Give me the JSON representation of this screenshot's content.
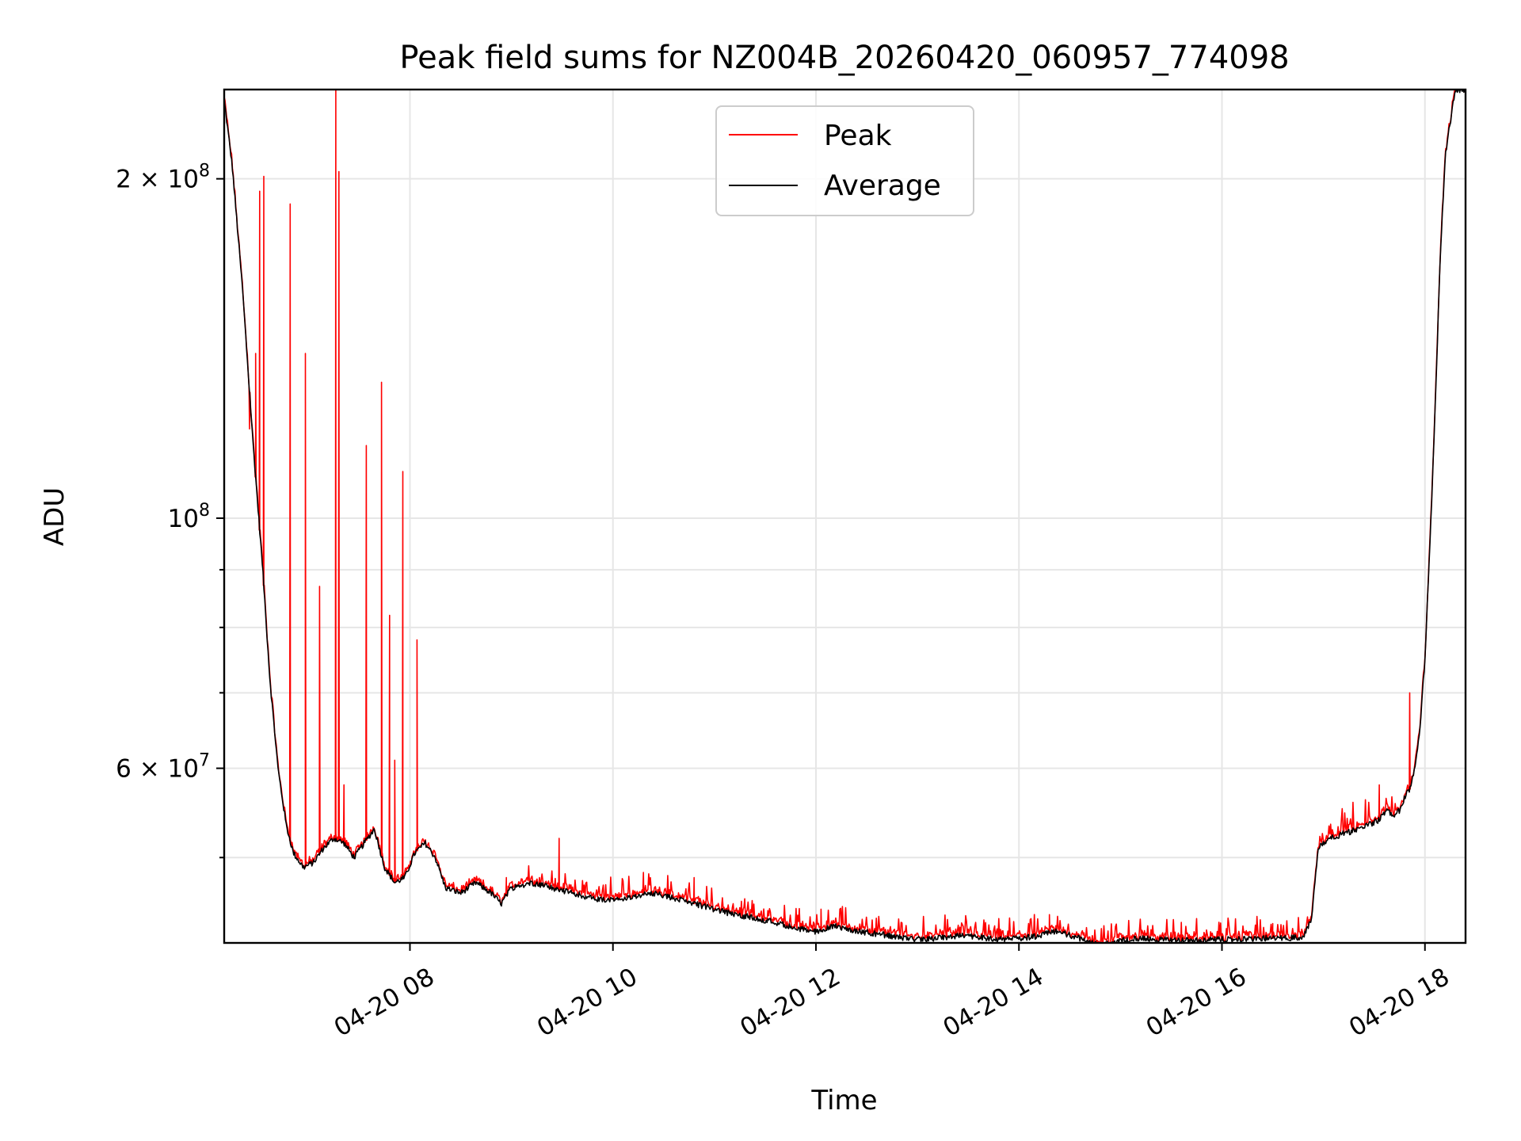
{
  "chart_data": {
    "type": "line",
    "title": "Peak field sums for NZ004B_20260420_060957_774098",
    "xlabel": "Time",
    "ylabel": "ADU",
    "x_range_hours": [
      6.17,
      18.4
    ],
    "yscale": "log",
    "ylim": [
      42000000,
      240000000
    ],
    "grid": true,
    "legend_position": "upper center",
    "x_ticks": [
      {
        "hour": 8,
        "label": "04-20 08"
      },
      {
        "hour": 10,
        "label": "04-20 10"
      },
      {
        "hour": 12,
        "label": "04-20 12"
      },
      {
        "hour": 14,
        "label": "04-20 14"
      },
      {
        "hour": 16,
        "label": "04-20 16"
      },
      {
        "hour": 18,
        "label": "04-20 18"
      }
    ],
    "y_major_ticks": [
      {
        "value": 200000000,
        "base": "2 × 10",
        "exp": "8"
      },
      {
        "value": 100000000,
        "base": "10",
        "exp": "8"
      },
      {
        "value": 60000000,
        "base": "6 × 10",
        "exp": "7"
      }
    ],
    "y_minor_ticks": [
      90000000,
      80000000,
      70000000,
      50000000
    ],
    "series": [
      {
        "name": "Average",
        "color": "#000000",
        "x": [
          6.17,
          6.25,
          6.35,
          6.45,
          6.55,
          6.62,
          6.7,
          6.78,
          6.85,
          6.95,
          7.05,
          7.15,
          7.25,
          7.35,
          7.45,
          7.55,
          7.65,
          7.75,
          7.85,
          7.95,
          8.05,
          8.15,
          8.25,
          8.35,
          8.5,
          8.65,
          8.8,
          8.9,
          9.0,
          9.2,
          9.4,
          9.6,
          9.8,
          10.0,
          10.2,
          10.4,
          10.6,
          10.8,
          11.0,
          11.2,
          11.4,
          11.6,
          11.8,
          12.0,
          12.2,
          12.4,
          12.6,
          12.8,
          13.0,
          13.2,
          13.4,
          13.6,
          13.8,
          14.0,
          14.2,
          14.35,
          14.5,
          14.65,
          14.8,
          15.0,
          15.2,
          15.4,
          15.6,
          15.8,
          16.0,
          16.2,
          16.4,
          16.6,
          16.8,
          16.88,
          16.95,
          17.05,
          17.2,
          17.35,
          17.45,
          17.55,
          17.62,
          17.68,
          17.75,
          17.8,
          17.85,
          17.9,
          17.95,
          18.0,
          18.05,
          18.1,
          18.15,
          18.2,
          18.3,
          18.4
        ],
        "y": [
          235000000,
          205000000,
          160000000,
          118000000,
          90000000,
          72000000,
          60000000,
          53500000,
          50500000,
          49000000,
          49500000,
          51000000,
          52000000,
          51500000,
          50000000,
          51500000,
          53000000,
          49000000,
          47500000,
          48000000,
          50500000,
          51500000,
          50000000,
          47000000,
          46500000,
          47500000,
          46500000,
          45500000,
          47000000,
          47500000,
          47000000,
          46500000,
          46000000,
          45800000,
          46200000,
          46500000,
          46000000,
          45500000,
          45000000,
          44500000,
          44200000,
          43800000,
          43300000,
          43000000,
          43500000,
          43000000,
          42800000,
          42500000,
          42300000,
          42400000,
          42600000,
          42500000,
          42300000,
          42400000,
          42600000,
          43000000,
          42700000,
          42200000,
          41800000,
          42200000,
          42400000,
          42300000,
          42200000,
          42200000,
          42300000,
          42300000,
          42400000,
          42400000,
          42500000,
          44000000,
          51000000,
          52000000,
          52500000,
          53000000,
          53500000,
          54000000,
          55000000,
          54500000,
          55000000,
          56500000,
          57500000,
          60000000,
          65000000,
          75000000,
          95000000,
          125000000,
          170000000,
          210000000,
          240000000,
          240000000
        ]
      },
      {
        "name": "Peak",
        "color": "#ff0000",
        "spikes": [
          {
            "x": 6.42,
            "y": 120000000
          },
          {
            "x": 6.48,
            "y": 140000000
          },
          {
            "x": 6.52,
            "y": 195000000
          },
          {
            "x": 6.56,
            "y": 201000000
          },
          {
            "x": 6.82,
            "y": 190000000
          },
          {
            "x": 6.97,
            "y": 140000000
          },
          {
            "x": 7.11,
            "y": 87000000
          },
          {
            "x": 7.27,
            "y": 240000000
          },
          {
            "x": 7.3,
            "y": 203000000
          },
          {
            "x": 7.35,
            "y": 58000000
          },
          {
            "x": 7.57,
            "y": 116000000
          },
          {
            "x": 7.72,
            "y": 132000000
          },
          {
            "x": 7.8,
            "y": 82000000
          },
          {
            "x": 7.85,
            "y": 61000000
          },
          {
            "x": 7.93,
            "y": 110000000
          },
          {
            "x": 8.07,
            "y": 78000000
          },
          {
            "x": 8.95,
            "y": 48000000
          },
          {
            "x": 9.47,
            "y": 52000000
          },
          {
            "x": 10.3,
            "y": 48500000
          },
          {
            "x": 10.8,
            "y": 48000000
          },
          {
            "x": 12.05,
            "y": 45000000
          },
          {
            "x": 14.3,
            "y": 44500000
          },
          {
            "x": 15.6,
            "y": 43800000
          },
          {
            "x": 16.5,
            "y": 43700000
          },
          {
            "x": 17.55,
            "y": 58000000
          },
          {
            "x": 17.85,
            "y": 70000000
          }
        ]
      }
    ]
  }
}
